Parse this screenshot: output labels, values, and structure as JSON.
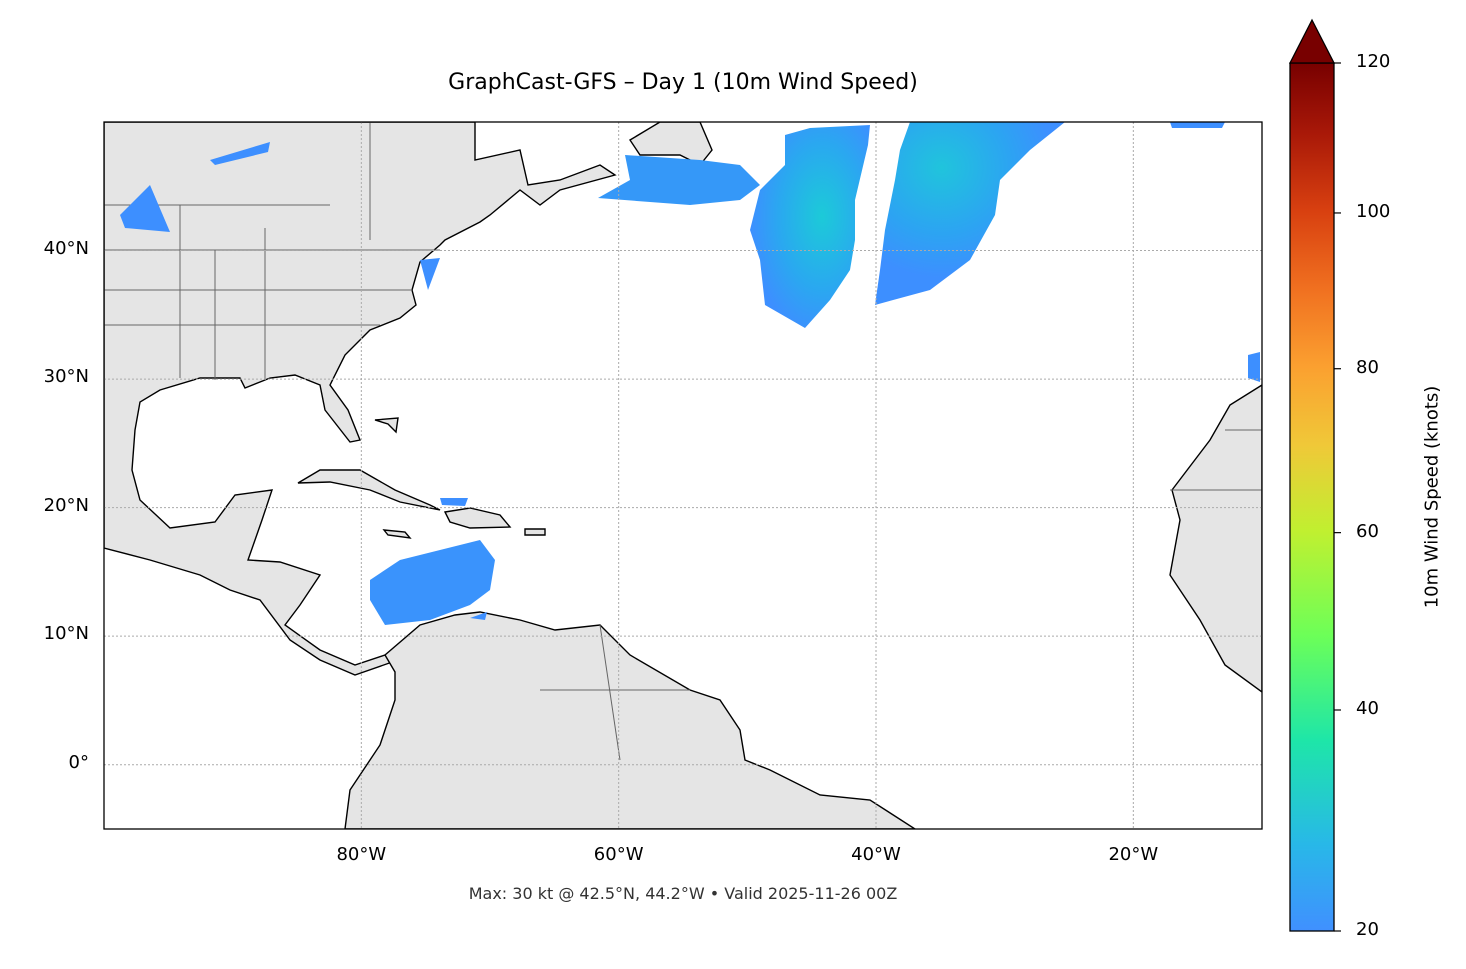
{
  "title": "GraphCast-GFS – Day 1 (10m Wind Speed)",
  "footer": "Max: 30 kt @ 42.5°N, 44.2°W • Valid 2025-11-26 00Z",
  "chart_data": {
    "type": "heatmap",
    "map_extent": {
      "lon": [
        -100,
        -10
      ],
      "lat": [
        -5,
        50
      ]
    },
    "x_ticks": [
      {
        "value": -80,
        "label": "80°W"
      },
      {
        "value": -60,
        "label": "60°W"
      },
      {
        "value": -40,
        "label": "40°W"
      },
      {
        "value": -20,
        "label": "20°W"
      }
    ],
    "y_ticks": [
      {
        "value": 40,
        "label": "40°N"
      },
      {
        "value": 30,
        "label": "30°N"
      },
      {
        "value": 20,
        "label": "20°N"
      },
      {
        "value": 10,
        "label": "10°N"
      },
      {
        "value": 0,
        "label": "0°"
      }
    ],
    "grid": true,
    "land_color": "#e5e5e5",
    "colorbar": {
      "label": "10m Wind Speed (knots)",
      "range": [
        20,
        120
      ],
      "extend": "max",
      "norm": "power",
      "ticks": [
        {
          "value": 20,
          "label": "20"
        },
        {
          "value": 40,
          "label": "40"
        },
        {
          "value": 60,
          "label": "60"
        },
        {
          "value": 80,
          "label": "80"
        },
        {
          "value": 100,
          "label": "100"
        },
        {
          "value": 120,
          "label": "120"
        }
      ],
      "colormap": [
        "#4090ff",
        "#28b8e8",
        "#1ee6a8",
        "#6cff58",
        "#c0f030",
        "#f0c838",
        "#fba030",
        "#f07020",
        "#d84010",
        "#a81808",
        "#780000"
      ]
    },
    "wind_regions": [
      {
        "area": "central North Atlantic west lobe",
        "max_kt": 30
      },
      {
        "area": "central North Atlantic east lobe",
        "max_kt": 28
      },
      {
        "area": "south of Newfoundland",
        "max_kt": 23
      },
      {
        "area": "Caribbean Sea",
        "max_kt": 23
      },
      {
        "area": "Great Lakes",
        "max_kt": 21
      },
      {
        "area": "US mid-Atlantic coast",
        "max_kt": 21
      },
      {
        "area": "off Morocco",
        "max_kt": 21
      }
    ],
    "max": {
      "value_kt": 30,
      "lat": 42.5,
      "lon": -44.2
    }
  }
}
